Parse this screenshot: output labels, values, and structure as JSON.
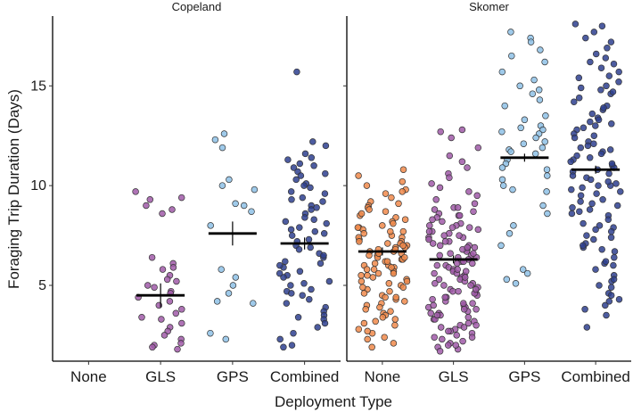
{
  "chart_data": {
    "type": "scatter",
    "subtype": "jittered strip plot with mean and error bar, faceted",
    "xlabel": "Deployment Type",
    "ylabel": "Foraging Trip Duration (Days)",
    "ylim": [
      1.2,
      18.5
    ],
    "yticks": [
      5,
      10,
      15
    ],
    "categories": [
      "None",
      "GLS",
      "GPS",
      "Combined"
    ],
    "grid": false,
    "legend": "none",
    "colors": {
      "None": "#f08a4b",
      "GLS": "#a05aa8",
      "GPS": "#8ec1e6",
      "Combined": "#2e3f8f"
    },
    "facets": [
      {
        "title": "Copeland",
        "groups": [
          {
            "name": "None",
            "mean": null,
            "ci": null,
            "values": []
          },
          {
            "name": "GLS",
            "mean": 4.5,
            "ci": [
              3.9,
              5.1
            ],
            "values": [
              9.7,
              9.4,
              9.3,
              9.0,
              8.8,
              8.6,
              6.4,
              6.1,
              5.9,
              5.8,
              5.5,
              5.3,
              5.2,
              5.0,
              4.9,
              4.7,
              4.6,
              4.4,
              4.2,
              4.0,
              3.8,
              3.6,
              3.4,
              3.3,
              3.1,
              2.9,
              2.7,
              2.5,
              2.3,
              2.1,
              2.0,
              1.9,
              1.8
            ]
          },
          {
            "name": "GPS",
            "mean": 7.6,
            "ci": [
              7.0,
              8.2
            ],
            "values": [
              12.6,
              12.3,
              11.9,
              10.3,
              10.0,
              9.8,
              9.1,
              9.0,
              8.7,
              8.0,
              5.8,
              5.4,
              5.0,
              4.6,
              4.2,
              4.1,
              2.6,
              2.3
            ]
          },
          {
            "name": "Combined",
            "mean": 7.1,
            "ci": [
              6.8,
              7.4
            ],
            "values": [
              15.7,
              12.2,
              12.0,
              11.6,
              11.3,
              11.1,
              10.9,
              10.7,
              10.5,
              10.3,
              10.1,
              9.9,
              9.7,
              9.6,
              9.4,
              9.2,
              9.0,
              8.8,
              8.6,
              8.4,
              8.3,
              8.1,
              7.9,
              7.7,
              7.5,
              7.3,
              7.2,
              7.0,
              6.8,
              6.6,
              6.4,
              6.2,
              6.1,
              5.9,
              5.7,
              5.5,
              5.4,
              5.2,
              5.0,
              4.8,
              4.7,
              4.5,
              4.3,
              4.1,
              3.9,
              3.7,
              3.5,
              3.3,
              3.1,
              2.9,
              2.6,
              2.3,
              2.0,
              1.9,
              5.6,
              6.9,
              7.8,
              8.9,
              10.0,
              11.0,
              9.3,
              6.5,
              4.6,
              3.4,
              7.6,
              8.2,
              5.1,
              6.0,
              10.6,
              11.4
            ]
          }
        ]
      },
      {
        "title": "Skomer",
        "groups": [
          {
            "name": "None",
            "mean": 6.7,
            "ci": [
              6.5,
              6.9
            ],
            "values": [
              10.8,
              10.5,
              10.2,
              10.0,
              9.8,
              9.6,
              9.4,
              9.2,
              9.0,
              8.9,
              8.7,
              8.5,
              8.4,
              8.2,
              8.1,
              8.0,
              7.9,
              7.8,
              7.7,
              7.6,
              7.5,
              7.4,
              7.3,
              7.2,
              7.1,
              7.0,
              6.9,
              6.9,
              6.8,
              6.7,
              6.7,
              6.6,
              6.5,
              6.5,
              6.4,
              6.3,
              6.2,
              6.1,
              6.0,
              5.9,
              5.8,
              5.7,
              5.6,
              5.5,
              5.4,
              5.3,
              5.2,
              5.1,
              5.0,
              4.9,
              4.8,
              4.7,
              4.6,
              4.5,
              4.4,
              4.3,
              4.2,
              4.1,
              4.0,
              3.9,
              3.8,
              3.7,
              3.6,
              3.5,
              3.4,
              3.3,
              3.2,
              3.0,
              2.8,
              2.6,
              2.4,
              2.3,
              2.1,
              1.9,
              8.8,
              7.7,
              6.6,
              5.5,
              4.4,
              9.1,
              7.0,
              6.3,
              5.9,
              8.3,
              7.4,
              6.8,
              6.2,
              5.6,
              9.7,
              7.2,
              6.0,
              5.2,
              4.9,
              8.6,
              7.9,
              7.1,
              6.4,
              5.8,
              3.1,
              2.7
            ]
          },
          {
            "name": "GLS",
            "mean": 6.3,
            "ci": [
              6.1,
              6.5
            ],
            "values": [
              12.8,
              12.7,
              12.4,
              11.9,
              11.5,
              11.2,
              10.9,
              10.6,
              10.4,
              10.1,
              9.9,
              9.7,
              9.5,
              9.3,
              9.1,
              8.9,
              8.8,
              8.6,
              8.5,
              8.4,
              8.3,
              8.2,
              8.1,
              8.0,
              7.9,
              7.8,
              7.7,
              7.6,
              7.5,
              7.4,
              7.3,
              7.2,
              7.1,
              7.0,
              6.9,
              6.8,
              6.7,
              6.6,
              6.5,
              6.4,
              6.3,
              6.2,
              6.1,
              6.0,
              5.9,
              5.8,
              5.7,
              5.6,
              5.5,
              5.4,
              5.3,
              5.2,
              5.1,
              5.0,
              4.9,
              4.8,
              4.7,
              4.6,
              4.5,
              4.4,
              4.3,
              4.2,
              4.1,
              4.0,
              3.9,
              3.8,
              3.7,
              3.6,
              3.5,
              3.4,
              3.3,
              3.2,
              3.1,
              3.0,
              2.9,
              2.8,
              2.7,
              2.6,
              2.5,
              2.4,
              2.3,
              2.2,
              2.1,
              2.0,
              1.9,
              1.8,
              1.7,
              8.7,
              7.9,
              7.2,
              6.8,
              6.1,
              5.6,
              5.0,
              4.6,
              3.9,
              3.3,
              2.7,
              8.0,
              7.4,
              6.6,
              6.0,
              5.3,
              4.8,
              4.1,
              3.5,
              2.4,
              8.5,
              7.7,
              7.0,
              6.4,
              5.7,
              5.1,
              4.4,
              3.8,
              3.0,
              2.0,
              8.9,
              6.9,
              6.2,
              5.4,
              4.7,
              4.0,
              3.6,
              7.5,
              6.5,
              5.8,
              2.9
            ]
          },
          {
            "name": "GPS",
            "mean": 11.4,
            "ci": [
              11.2,
              11.6
            ],
            "values": [
              17.7,
              17.4,
              17.2,
              16.8,
              16.5,
              16.2,
              15.7,
              15.3,
              15.0,
              14.8,
              14.6,
              14.3,
              14.0,
              13.5,
              13.3,
              13.0,
              12.9,
              12.8,
              12.6,
              12.4,
              12.2,
              11.9,
              11.8,
              11.6,
              11.3,
              11.1,
              10.8,
              10.5,
              10.3,
              10.0,
              9.8,
              9.7,
              9.0,
              8.6,
              8.0,
              7.6,
              7.0,
              5.8,
              5.6,
              5.3,
              5.1,
              12.1,
              11.7,
              10.9,
              12.7
            ]
          },
          {
            "name": "Combined",
            "mean": 10.8,
            "ci": [
              10.6,
              11.0
            ],
            "values": [
              18.1,
              18.0,
              17.7,
              17.2,
              16.9,
              16.6,
              16.4,
              16.2,
              15.9,
              15.7,
              15.5,
              15.2,
              15.0,
              14.8,
              14.6,
              14.4,
              14.2,
              14.0,
              13.8,
              13.6,
              13.4,
              13.2,
              13.0,
              12.8,
              12.6,
              12.4,
              12.2,
              12.0,
              11.9,
              11.7,
              11.5,
              11.3,
              11.2,
              11.0,
              10.9,
              10.7,
              10.6,
              10.4,
              10.3,
              10.1,
              10.0,
              9.8,
              9.7,
              9.5,
              9.3,
              9.1,
              8.9,
              8.7,
              8.5,
              8.3,
              8.1,
              7.9,
              7.7,
              7.5,
              7.3,
              7.1,
              6.9,
              6.7,
              6.4,
              6.1,
              5.8,
              5.5,
              5.2,
              4.9,
              4.6,
              4.3,
              4.0,
              3.8,
              3.5,
              2.9,
              16.1,
              15.4,
              14.7,
              13.9,
              13.1,
              12.5,
              11.8,
              11.1,
              10.5,
              9.9,
              9.2,
              8.6,
              8.0,
              7.4,
              6.8,
              6.0,
              5.3,
              4.5,
              14.9,
              13.3,
              12.1,
              11.4,
              10.8,
              10.2,
              9.6,
              8.8,
              7.8,
              7.0,
              6.2,
              4.2,
              17.4,
              12.9,
              11.6,
              10.0,
              9.0,
              5.0
            ]
          }
        ]
      }
    ]
  }
}
